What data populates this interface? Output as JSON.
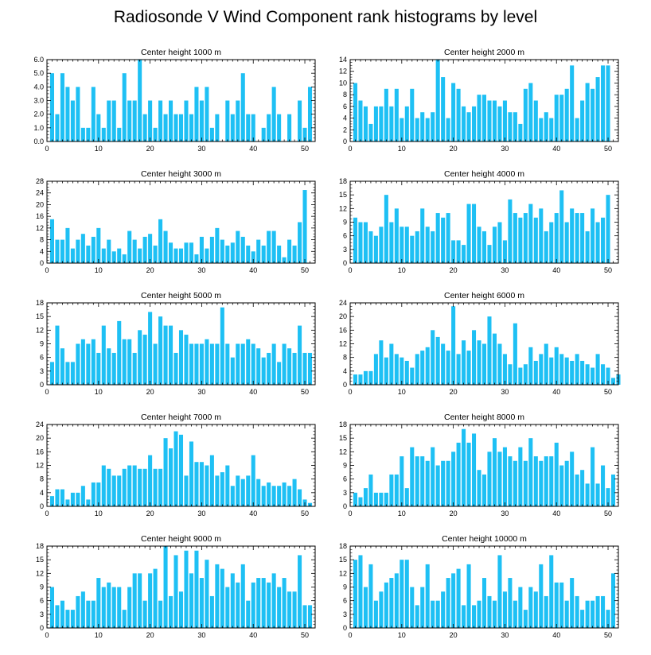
{
  "title": "Radiosonde V Wind Component rank histograms by level",
  "colors": {
    "bar": "#1ec0f4",
    "axis": "#000000",
    "background": "#ffffff"
  },
  "chart_data": [
    {
      "type": "bar",
      "title": "Center height 1000 m",
      "xlim": [
        0,
        52
      ],
      "ylim": [
        0,
        6
      ],
      "xticks": [
        0,
        10,
        20,
        30,
        40,
        50
      ],
      "yticks": [
        0,
        1,
        2,
        3,
        4,
        5,
        6
      ],
      "ytick_labels": [
        "0.0",
        "1.0",
        "2.0",
        "3.0",
        "4.0",
        "5.0",
        "6.0"
      ],
      "values": [
        5,
        2,
        5,
        4,
        3,
        4,
        1,
        1,
        4,
        2,
        1,
        3,
        3,
        1,
        5,
        3,
        3,
        6,
        2,
        3,
        1,
        3,
        2,
        3,
        2,
        2,
        3,
        2,
        4,
        3,
        4,
        1,
        2,
        0,
        3,
        2,
        3,
        5,
        2,
        2,
        0,
        1,
        2,
        4,
        2,
        0,
        2,
        0,
        3,
        1,
        4
      ]
    },
    {
      "type": "bar",
      "title": "Center height 2000 m",
      "xlim": [
        0,
        52
      ],
      "ylim": [
        0,
        14
      ],
      "xticks": [
        0,
        10,
        20,
        30,
        40,
        50
      ],
      "yticks": [
        0,
        2,
        4,
        6,
        8,
        10,
        12,
        14
      ],
      "ytick_labels": [
        "0",
        "2",
        "4",
        "6",
        "8",
        "10",
        "12",
        "14"
      ],
      "values": [
        10,
        7,
        6,
        3,
        6,
        6,
        9,
        6,
        9,
        4,
        6,
        9,
        4,
        5,
        4,
        5,
        14,
        11,
        4,
        10,
        9,
        6,
        5,
        6,
        8,
        8,
        7,
        7,
        6,
        7,
        5,
        5,
        3,
        9,
        10,
        7,
        4,
        5,
        4,
        8,
        8,
        9,
        13,
        4,
        7,
        10,
        9,
        11,
        13,
        13,
        0
      ]
    },
    {
      "type": "bar",
      "title": "Center height 3000 m",
      "xlim": [
        0,
        52
      ],
      "ylim": [
        0,
        28
      ],
      "xticks": [
        0,
        10,
        20,
        30,
        40,
        50
      ],
      "yticks": [
        0,
        4,
        8,
        12,
        16,
        20,
        24,
        28
      ],
      "ytick_labels": [
        "0",
        "4",
        "8",
        "12",
        "16",
        "20",
        "24",
        "28"
      ],
      "values": [
        15,
        8,
        8,
        12,
        5,
        8,
        10,
        6,
        9,
        12,
        5,
        8,
        4,
        5,
        3,
        11,
        8,
        5,
        9,
        10,
        6,
        15,
        11,
        7,
        5,
        5,
        7,
        7,
        3,
        9,
        5,
        9,
        12,
        8,
        6,
        7,
        11,
        9,
        6,
        4,
        8,
        6,
        11,
        11,
        6,
        2,
        8,
        6,
        14,
        25,
        0
      ]
    },
    {
      "type": "bar",
      "title": "Center height 4000 m",
      "xlim": [
        0,
        52
      ],
      "ylim": [
        0,
        18
      ],
      "xticks": [
        0,
        10,
        20,
        30,
        40,
        50
      ],
      "yticks": [
        0,
        3,
        6,
        9,
        12,
        15,
        18
      ],
      "ytick_labels": [
        "0",
        "3",
        "6",
        "9",
        "12",
        "15",
        "18"
      ],
      "values": [
        10,
        9,
        9,
        7,
        6,
        8,
        15,
        9,
        12,
        8,
        8,
        6,
        7,
        12,
        8,
        7,
        11,
        10,
        11,
        5,
        5,
        4,
        13,
        13,
        8,
        7,
        4,
        8,
        9,
        5,
        14,
        11,
        10,
        11,
        13,
        10,
        12,
        7,
        9,
        11,
        16,
        9,
        12,
        11,
        11,
        7,
        12,
        9,
        10,
        15,
        0
      ]
    },
    {
      "type": "bar",
      "title": "Center height 5000 m",
      "xlim": [
        0,
        52
      ],
      "ylim": [
        0,
        18
      ],
      "xticks": [
        0,
        10,
        20,
        30,
        40,
        50
      ],
      "yticks": [
        0,
        3,
        6,
        9,
        12,
        15,
        18
      ],
      "ytick_labels": [
        "0",
        "3",
        "6",
        "9",
        "12",
        "15",
        "18"
      ],
      "values": [
        5,
        13,
        8,
        5,
        5,
        9,
        10,
        9,
        10,
        7,
        13,
        8,
        7,
        14,
        10,
        10,
        7,
        12,
        11,
        16,
        9,
        15,
        13,
        13,
        7,
        12,
        11,
        9,
        9,
        9,
        10,
        9,
        9,
        17,
        9,
        6,
        9,
        9,
        10,
        9,
        8,
        6,
        7,
        9,
        5,
        9,
        8,
        7,
        13,
        7,
        7
      ]
    },
    {
      "type": "bar",
      "title": "Center height 6000 m",
      "xlim": [
        0,
        52
      ],
      "ylim": [
        0,
        24
      ],
      "xticks": [
        0,
        10,
        20,
        30,
        40,
        50
      ],
      "yticks": [
        0,
        4,
        8,
        12,
        16,
        20,
        24
      ],
      "ytick_labels": [
        "0",
        "4",
        "8",
        "12",
        "16",
        "20",
        "24"
      ],
      "values": [
        3,
        3,
        4,
        4,
        9,
        13,
        8,
        12,
        9,
        8,
        7,
        5,
        9,
        10,
        11,
        16,
        14,
        12,
        10,
        23,
        9,
        13,
        10,
        16,
        13,
        12,
        20,
        15,
        12,
        9,
        6,
        18,
        5,
        6,
        11,
        7,
        9,
        12,
        8,
        11,
        9,
        8,
        7,
        9,
        7,
        6,
        5,
        9,
        6,
        5,
        2,
        3
      ]
    },
    {
      "type": "bar",
      "title": "Center height 7000 m",
      "xlim": [
        0,
        52
      ],
      "ylim": [
        0,
        24
      ],
      "xticks": [
        0,
        10,
        20,
        30,
        40,
        50
      ],
      "yticks": [
        0,
        4,
        8,
        12,
        16,
        20,
        24
      ],
      "ytick_labels": [
        "0",
        "4",
        "8",
        "12",
        "16",
        "20",
        "24"
      ],
      "values": [
        3,
        5,
        5,
        2,
        4,
        4,
        6,
        2,
        7,
        7,
        12,
        11,
        9,
        9,
        11,
        12,
        12,
        11,
        11,
        15,
        11,
        11,
        20,
        17,
        22,
        21,
        9,
        19,
        13,
        13,
        12,
        15,
        9,
        10,
        12,
        6,
        9,
        8,
        9,
        15,
        8,
        6,
        7,
        6,
        6,
        7,
        6,
        8,
        5,
        2,
        1
      ]
    },
    {
      "type": "bar",
      "title": "Center height 8000 m",
      "xlim": [
        0,
        52
      ],
      "ylim": [
        0,
        18
      ],
      "xticks": [
        0,
        10,
        20,
        30,
        40,
        50
      ],
      "yticks": [
        0,
        3,
        6,
        9,
        12,
        15,
        18
      ],
      "ytick_labels": [
        "0",
        "3",
        "6",
        "9",
        "12",
        "15",
        "18"
      ],
      "values": [
        3,
        2,
        4,
        7,
        3,
        3,
        3,
        7,
        7,
        11,
        4,
        13,
        11,
        11,
        10,
        13,
        9,
        10,
        10,
        12,
        14,
        17,
        14,
        16,
        8,
        7,
        12,
        15,
        12,
        13,
        11,
        10,
        13,
        10,
        15,
        11,
        10,
        11,
        11,
        14,
        9,
        10,
        12,
        7,
        8,
        5,
        13,
        5,
        9,
        4,
        7
      ]
    },
    {
      "type": "bar",
      "title": "Center height 9000 m",
      "xlim": [
        0,
        52
      ],
      "ylim": [
        0,
        18
      ],
      "xticks": [
        0,
        10,
        20,
        30,
        40,
        50
      ],
      "yticks": [
        0,
        3,
        6,
        9,
        12,
        15,
        18
      ],
      "ytick_labels": [
        "0",
        "3",
        "6",
        "9",
        "12",
        "15",
        "18"
      ],
      "values": [
        9,
        5,
        6,
        4,
        4,
        7,
        8,
        6,
        6,
        11,
        9,
        10,
        9,
        9,
        4,
        9,
        12,
        12,
        6,
        12,
        13,
        6,
        18,
        7,
        16,
        8,
        17,
        12,
        17,
        11,
        15,
        7,
        14,
        13,
        9,
        12,
        10,
        14,
        6,
        10,
        11,
        11,
        10,
        12,
        9,
        11,
        8,
        8,
        16,
        5,
        5
      ]
    },
    {
      "type": "bar",
      "title": "Center height 10000 m",
      "xlim": [
        0,
        52
      ],
      "ylim": [
        0,
        18
      ],
      "xticks": [
        0,
        10,
        20,
        30,
        40,
        50
      ],
      "yticks": [
        0,
        3,
        6,
        9,
        12,
        15,
        18
      ],
      "ytick_labels": [
        "0",
        "3",
        "6",
        "9",
        "12",
        "15",
        "18"
      ],
      "values": [
        15,
        16,
        9,
        14,
        6,
        8,
        10,
        11,
        12,
        15,
        15,
        9,
        5,
        9,
        14,
        6,
        6,
        8,
        11,
        12,
        13,
        5,
        14,
        5,
        6,
        11,
        7,
        6,
        16,
        8,
        11,
        6,
        9,
        4,
        9,
        8,
        14,
        7,
        16,
        10,
        10,
        6,
        11,
        7,
        4,
        6,
        6,
        7,
        7,
        4,
        12
      ]
    }
  ]
}
